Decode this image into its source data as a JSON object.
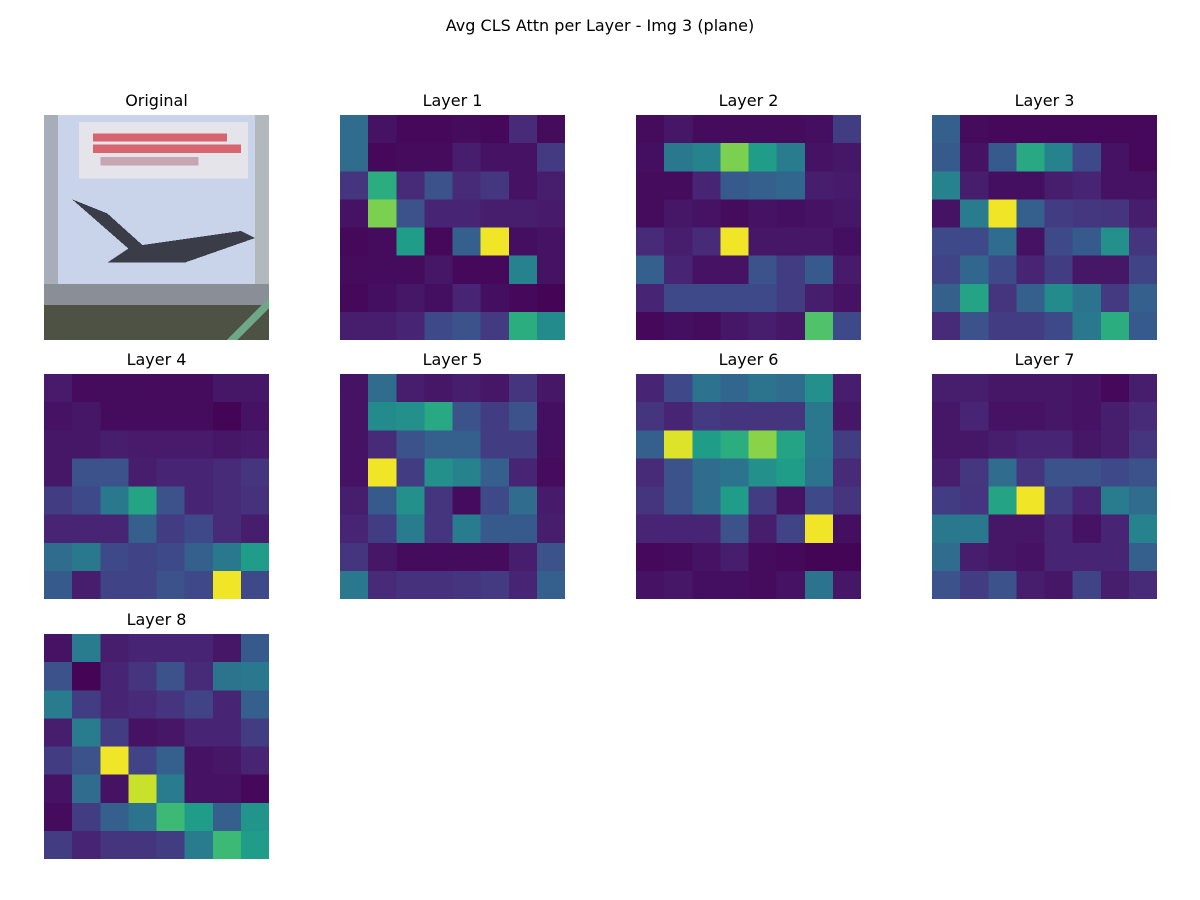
{
  "figure": {
    "title": "Avg CLS Attn per Layer - Img 3 (plane)"
  },
  "chart_data": {
    "type": "heatmap",
    "colormap": "viridis",
    "grid": false,
    "panels": [
      {
        "title": "Original",
        "kind": "image",
        "image_description_colors": {
          "sky": "#c9d3e9",
          "banner": "#e4e4ea",
          "banner_text": "#d8646f",
          "plane": "#3a3d47",
          "ground": "#4d5244",
          "stripe": "#6fa889"
        }
      },
      {
        "title": "Layer 1",
        "kind": "heatmap",
        "values": [
          [
            0.35,
            0.05,
            0.02,
            0.02,
            0.03,
            0.02,
            0.12,
            0.03
          ],
          [
            0.35,
            0.02,
            0.03,
            0.03,
            0.08,
            0.05,
            0.05,
            0.17
          ],
          [
            0.15,
            0.62,
            0.12,
            0.25,
            0.12,
            0.16,
            0.05,
            0.08
          ],
          [
            0.05,
            0.8,
            0.25,
            0.1,
            0.1,
            0.08,
            0.08,
            0.07
          ],
          [
            0.02,
            0.03,
            0.55,
            0.02,
            0.3,
            0.98,
            0.04,
            0.05
          ],
          [
            0.03,
            0.03,
            0.03,
            0.06,
            0.02,
            0.02,
            0.45,
            0.05
          ],
          [
            0.02,
            0.04,
            0.06,
            0.04,
            0.1,
            0.04,
            0.02,
            0.01
          ],
          [
            0.08,
            0.08,
            0.1,
            0.22,
            0.25,
            0.17,
            0.62,
            0.48
          ]
        ]
      },
      {
        "title": "Layer 2",
        "kind": "heatmap",
        "values": [
          [
            0.03,
            0.06,
            0.03,
            0.03,
            0.03,
            0.03,
            0.04,
            0.18
          ],
          [
            0.04,
            0.4,
            0.45,
            0.8,
            0.55,
            0.42,
            0.05,
            0.06
          ],
          [
            0.03,
            0.03,
            0.1,
            0.28,
            0.3,
            0.33,
            0.08,
            0.07
          ],
          [
            0.03,
            0.06,
            0.05,
            0.03,
            0.05,
            0.04,
            0.05,
            0.06
          ],
          [
            0.12,
            0.08,
            0.12,
            0.98,
            0.06,
            0.06,
            0.06,
            0.04
          ],
          [
            0.3,
            0.1,
            0.05,
            0.05,
            0.25,
            0.18,
            0.28,
            0.07
          ],
          [
            0.1,
            0.22,
            0.22,
            0.22,
            0.22,
            0.18,
            0.08,
            0.05
          ],
          [
            0.02,
            0.04,
            0.03,
            0.06,
            0.08,
            0.06,
            0.72,
            0.22
          ]
        ]
      },
      {
        "title": "Layer 3",
        "kind": "heatmap",
        "values": [
          [
            0.3,
            0.03,
            0.02,
            0.02,
            0.02,
            0.02,
            0.02,
            0.02
          ],
          [
            0.28,
            0.05,
            0.28,
            0.6,
            0.45,
            0.22,
            0.05,
            0.02
          ],
          [
            0.45,
            0.08,
            0.04,
            0.04,
            0.08,
            0.1,
            0.05,
            0.05
          ],
          [
            0.05,
            0.42,
            0.98,
            0.3,
            0.18,
            0.16,
            0.15,
            0.08
          ],
          [
            0.22,
            0.22,
            0.35,
            0.05,
            0.22,
            0.28,
            0.5,
            0.15
          ],
          [
            0.2,
            0.33,
            0.22,
            0.1,
            0.18,
            0.06,
            0.06,
            0.2
          ],
          [
            0.3,
            0.58,
            0.15,
            0.3,
            0.48,
            0.38,
            0.17,
            0.3
          ],
          [
            0.12,
            0.25,
            0.18,
            0.18,
            0.22,
            0.4,
            0.62,
            0.28
          ]
        ]
      },
      {
        "title": "Layer 4",
        "kind": "heatmap",
        "values": [
          [
            0.07,
            0.03,
            0.03,
            0.03,
            0.03,
            0.03,
            0.06,
            0.06
          ],
          [
            0.05,
            0.06,
            0.03,
            0.03,
            0.03,
            0.03,
            0.01,
            0.05
          ],
          [
            0.06,
            0.06,
            0.08,
            0.07,
            0.07,
            0.07,
            0.06,
            0.07
          ],
          [
            0.06,
            0.25,
            0.25,
            0.08,
            0.1,
            0.1,
            0.12,
            0.15
          ],
          [
            0.18,
            0.22,
            0.4,
            0.58,
            0.25,
            0.1,
            0.12,
            0.14
          ],
          [
            0.1,
            0.1,
            0.1,
            0.3,
            0.18,
            0.22,
            0.12,
            0.08
          ],
          [
            0.35,
            0.4,
            0.22,
            0.2,
            0.22,
            0.3,
            0.4,
            0.55
          ],
          [
            0.28,
            0.08,
            0.2,
            0.2,
            0.25,
            0.22,
            0.98,
            0.22
          ]
        ]
      },
      {
        "title": "Layer 5",
        "kind": "heatmap",
        "values": [
          [
            0.05,
            0.35,
            0.08,
            0.06,
            0.08,
            0.06,
            0.15,
            0.06
          ],
          [
            0.05,
            0.48,
            0.5,
            0.6,
            0.25,
            0.18,
            0.25,
            0.04
          ],
          [
            0.05,
            0.12,
            0.25,
            0.3,
            0.3,
            0.18,
            0.18,
            0.04
          ],
          [
            0.05,
            0.98,
            0.18,
            0.5,
            0.45,
            0.3,
            0.1,
            0.03
          ],
          [
            0.08,
            0.28,
            0.5,
            0.15,
            0.03,
            0.22,
            0.35,
            0.07
          ],
          [
            0.1,
            0.18,
            0.42,
            0.15,
            0.42,
            0.28,
            0.28,
            0.08
          ],
          [
            0.15,
            0.06,
            0.03,
            0.03,
            0.03,
            0.03,
            0.08,
            0.25
          ],
          [
            0.4,
            0.12,
            0.14,
            0.14,
            0.15,
            0.17,
            0.1,
            0.3
          ]
        ]
      },
      {
        "title": "Layer 6",
        "kind": "heatmap",
        "values": [
          [
            0.1,
            0.22,
            0.38,
            0.33,
            0.38,
            0.35,
            0.5,
            0.08
          ],
          [
            0.15,
            0.1,
            0.17,
            0.15,
            0.15,
            0.15,
            0.4,
            0.06
          ],
          [
            0.3,
            0.95,
            0.55,
            0.62,
            0.82,
            0.58,
            0.4,
            0.18
          ],
          [
            0.12,
            0.25,
            0.35,
            0.38,
            0.5,
            0.55,
            0.38,
            0.12
          ],
          [
            0.15,
            0.25,
            0.35,
            0.55,
            0.18,
            0.05,
            0.22,
            0.15
          ],
          [
            0.1,
            0.1,
            0.1,
            0.25,
            0.08,
            0.2,
            0.98,
            0.04
          ],
          [
            0.02,
            0.03,
            0.05,
            0.08,
            0.03,
            0.02,
            0.01,
            0.01
          ],
          [
            0.05,
            0.06,
            0.04,
            0.04,
            0.03,
            0.05,
            0.38,
            0.06
          ]
        ]
      },
      {
        "title": "Layer 7",
        "kind": "heatmap",
        "values": [
          [
            0.08,
            0.08,
            0.06,
            0.06,
            0.06,
            0.05,
            0.02,
            0.08
          ],
          [
            0.06,
            0.1,
            0.05,
            0.05,
            0.06,
            0.05,
            0.08,
            0.12
          ],
          [
            0.06,
            0.06,
            0.08,
            0.1,
            0.1,
            0.06,
            0.08,
            0.15
          ],
          [
            0.08,
            0.16,
            0.35,
            0.15,
            0.25,
            0.25,
            0.22,
            0.25
          ],
          [
            0.18,
            0.15,
            0.58,
            0.98,
            0.18,
            0.1,
            0.42,
            0.35
          ],
          [
            0.4,
            0.4,
            0.06,
            0.06,
            0.1,
            0.05,
            0.1,
            0.45
          ],
          [
            0.35,
            0.08,
            0.06,
            0.05,
            0.1,
            0.1,
            0.1,
            0.3
          ],
          [
            0.25,
            0.18,
            0.25,
            0.08,
            0.06,
            0.2,
            0.08,
            0.12
          ]
        ]
      },
      {
        "title": "Layer 8",
        "kind": "heatmap",
        "values": [
          [
            0.05,
            0.42,
            0.08,
            0.1,
            0.1,
            0.1,
            0.06,
            0.28
          ],
          [
            0.25,
            0.01,
            0.1,
            0.15,
            0.25,
            0.12,
            0.38,
            0.4
          ],
          [
            0.42,
            0.18,
            0.1,
            0.12,
            0.15,
            0.2,
            0.1,
            0.3
          ],
          [
            0.08,
            0.42,
            0.18,
            0.05,
            0.06,
            0.1,
            0.1,
            0.18
          ],
          [
            0.18,
            0.25,
            0.98,
            0.2,
            0.3,
            0.05,
            0.06,
            0.1
          ],
          [
            0.05,
            0.35,
            0.05,
            0.92,
            0.42,
            0.05,
            0.05,
            0.02
          ],
          [
            0.03,
            0.18,
            0.3,
            0.38,
            0.68,
            0.55,
            0.3,
            0.52
          ],
          [
            0.18,
            0.1,
            0.15,
            0.15,
            0.18,
            0.42,
            0.68,
            0.55
          ]
        ]
      }
    ]
  }
}
